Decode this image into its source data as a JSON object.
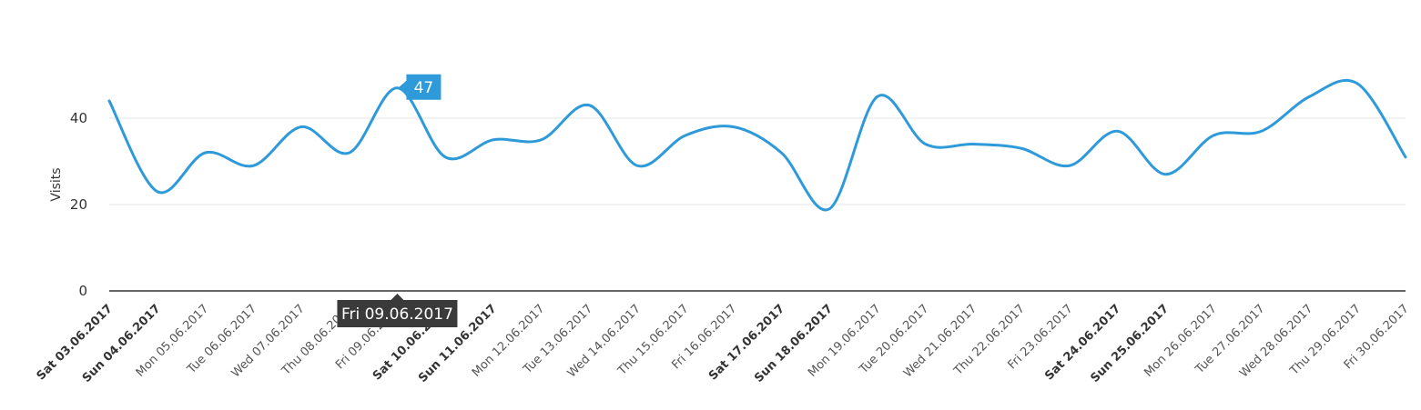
{
  "chart_data": {
    "type": "line",
    "ylabel": "Visits",
    "ylim": [
      0,
      50
    ],
    "yticks": [
      0,
      20,
      40
    ],
    "grid": true,
    "series_color": "#2e9ad9",
    "categories": [
      "Sat 03.06.2017",
      "Sun 04.06.2017",
      "Mon 05.06.2017",
      "Tue 06.06.2017",
      "Wed 07.06.2017",
      "Thu 08.06.2017",
      "Fri 09.06.2017",
      "Sat 10.06.2017",
      "Sun 11.06.2017",
      "Mon 12.06.2017",
      "Tue 13.06.2017",
      "Wed 14.06.2017",
      "Thu 15.06.2017",
      "Fri 16.06.2017",
      "Sat 17.06.2017",
      "Sun 18.06.2017",
      "Mon 19.06.2017",
      "Tue 20.06.2017",
      "Wed 21.06.2017",
      "Thu 22.06.2017",
      "Fri 23.06.2017",
      "Sat 24.06.2017",
      "Sun 25.06.2017",
      "Mon 26.06.2017",
      "Tue 27.06.2017",
      "Wed 28.06.2017",
      "Thu 29.06.2017",
      "Fri 30.06.2017"
    ],
    "weekend": [
      true,
      true,
      false,
      false,
      false,
      false,
      false,
      true,
      true,
      false,
      false,
      false,
      false,
      false,
      true,
      true,
      false,
      false,
      false,
      false,
      false,
      true,
      true,
      false,
      false,
      false,
      false,
      false
    ],
    "values": [
      44,
      23,
      32,
      29,
      38,
      32,
      47,
      31,
      35,
      35,
      43,
      29,
      36,
      38,
      32,
      19,
      45,
      34,
      34,
      33,
      29,
      37,
      27,
      36,
      37,
      45,
      48,
      31
    ],
    "tooltip": {
      "index": 6,
      "value_label": "47",
      "category_label": "Fri 09.06.2017"
    }
  }
}
